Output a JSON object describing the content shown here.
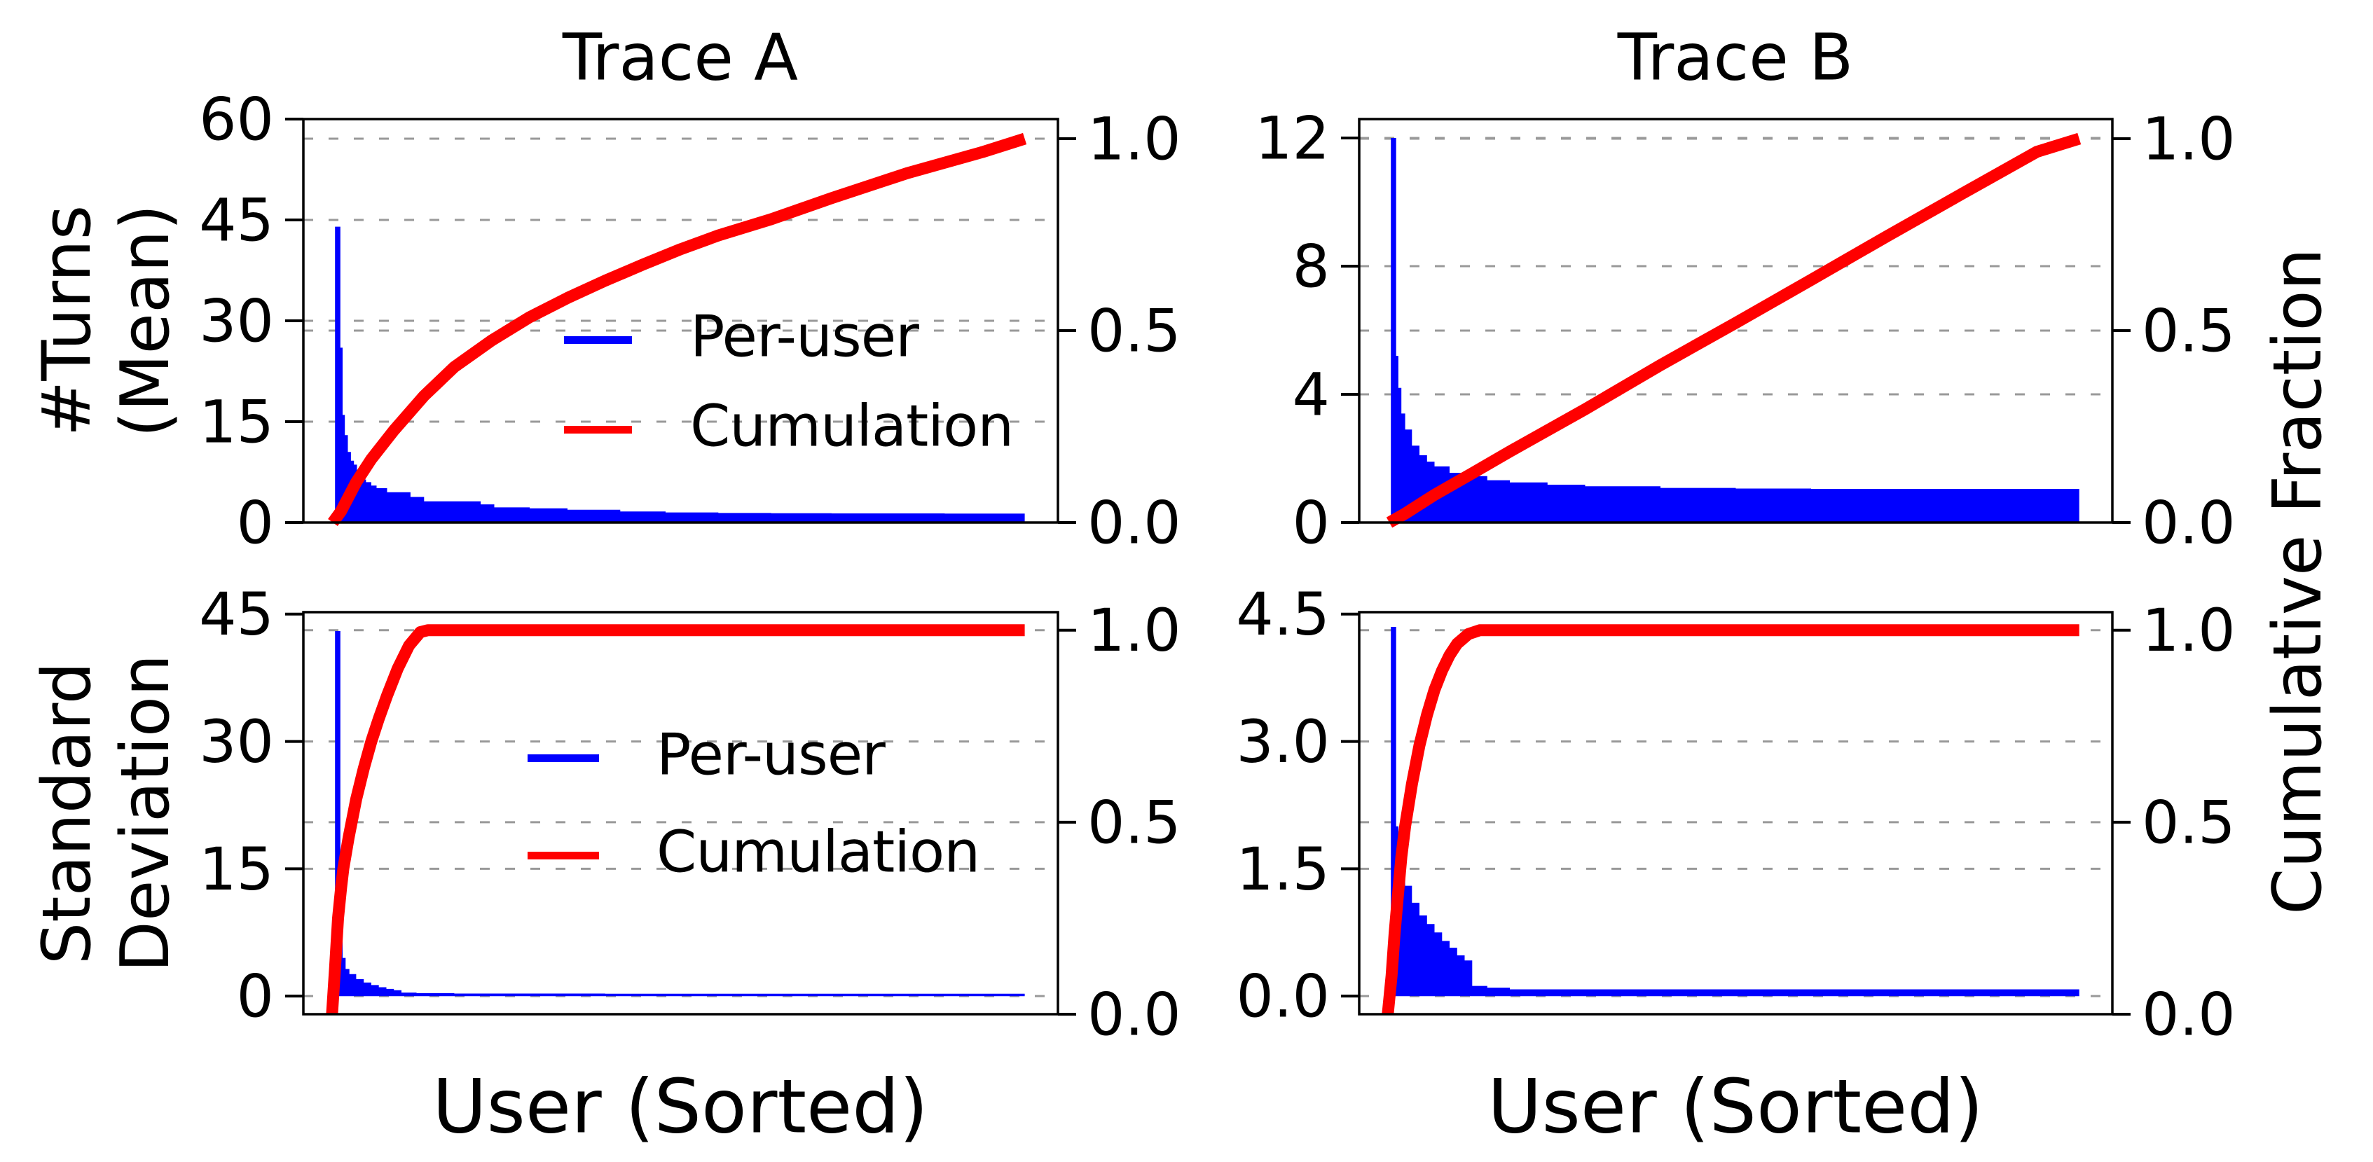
{
  "figure": {
    "background": "#ffffff",
    "title_a": "Trace A",
    "title_b": "Trace B",
    "xlabel": "User (Sorted)",
    "ylabel_top": {
      "line1": "#Turns",
      "line2": "(Mean)"
    },
    "ylabel_bottom": {
      "line1": "Standard",
      "line2": "Deviation"
    },
    "right_axis_label": "Cumulative Fraction",
    "legend": {
      "per_user": "Per-user",
      "cumulation": "Cumulation"
    },
    "colors": {
      "per_user_blue": "#0000ff",
      "cumulation_red": "#ff0000",
      "grid_gray": "#999999",
      "axis_black": "#000000"
    }
  },
  "chart_data": [
    {
      "id": "trace-a-mean",
      "type": "bar+line",
      "position": "top-left",
      "title": "Trace A",
      "x_axis": {
        "label": "User (Sorted)",
        "kind": "users sorted by value, normalized 0-1",
        "range": [
          0,
          1
        ]
      },
      "left_axis": {
        "label": "#Turns (Mean)",
        "min": 0,
        "max": 60,
        "ticks": [
          {
            "v": 0,
            "label": "0"
          },
          {
            "v": 15,
            "label": "15"
          },
          {
            "v": 30,
            "label": "30"
          },
          {
            "v": 45,
            "label": "45"
          },
          {
            "v": 60,
            "label": "60"
          }
        ]
      },
      "right_axis": {
        "label": "Cumulative Fraction",
        "min": 0,
        "max": 1.051,
        "ticks": [
          {
            "v": 0,
            "label": "0.0"
          },
          {
            "v": 0.5,
            "label": "0.5"
          },
          {
            "v": 1.0,
            "label": "1.0"
          }
        ]
      },
      "legend": true,
      "per_user": [
        [
          0.042,
          44
        ],
        [
          0.049,
          26
        ],
        [
          0.052,
          16
        ],
        [
          0.055,
          13
        ],
        [
          0.059,
          10.5
        ],
        [
          0.063,
          9.2
        ],
        [
          0.067,
          8.6
        ],
        [
          0.071,
          7.7
        ],
        [
          0.077,
          6.4
        ],
        [
          0.083,
          6.0
        ],
        [
          0.09,
          5.5
        ],
        [
          0.097,
          5.1
        ],
        [
          0.111,
          4.5
        ],
        [
          0.142,
          3.8
        ],
        [
          0.16,
          3.15
        ],
        [
          0.235,
          2.7
        ],
        [
          0.253,
          2.25
        ],
        [
          0.3,
          2.1
        ],
        [
          0.35,
          1.9
        ],
        [
          0.42,
          1.65
        ],
        [
          0.48,
          1.5
        ],
        [
          0.55,
          1.42
        ],
        [
          0.62,
          1.38
        ],
        [
          0.7,
          1.35
        ],
        [
          0.85,
          1.32
        ],
        [
          0.956,
          1.3
        ]
      ],
      "cumulation": [
        [
          0.039,
          0
        ],
        [
          0.05,
          0.03
        ],
        [
          0.07,
          0.105
        ],
        [
          0.09,
          0.165
        ],
        [
          0.12,
          0.24
        ],
        [
          0.16,
          0.33
        ],
        [
          0.2,
          0.405
        ],
        [
          0.25,
          0.475
        ],
        [
          0.3,
          0.535
        ],
        [
          0.35,
          0.585
        ],
        [
          0.4,
          0.63
        ],
        [
          0.45,
          0.672
        ],
        [
          0.5,
          0.712
        ],
        [
          0.55,
          0.748
        ],
        [
          0.62,
          0.79
        ],
        [
          0.7,
          0.845
        ],
        [
          0.8,
          0.91
        ],
        [
          0.9,
          0.965
        ],
        [
          0.956,
          1.0
        ]
      ]
    },
    {
      "id": "trace-b-mean",
      "type": "bar+line",
      "position": "top-right",
      "title": "Trace B",
      "x_axis": {
        "label": "User (Sorted)",
        "kind": "users sorted by value, normalized 0-1",
        "range": [
          0,
          1
        ]
      },
      "left_axis": {
        "label": "#Turns (Mean)",
        "min": 0,
        "max": 12.59,
        "ticks": [
          {
            "v": 0,
            "label": "0"
          },
          {
            "v": 4,
            "label": "4"
          },
          {
            "v": 8,
            "label": "8"
          },
          {
            "v": 12,
            "label": "12"
          }
        ]
      },
      "right_axis": {
        "label": "Cumulative Fraction",
        "min": 0,
        "max": 1.051,
        "ticks": [
          {
            "v": 0,
            "label": "0.0"
          },
          {
            "v": 0.5,
            "label": "0.5"
          },
          {
            "v": 1.0,
            "label": "1.0"
          }
        ]
      },
      "legend": false,
      "per_user": [
        [
          0.042,
          12
        ],
        [
          0.049,
          5.2
        ],
        [
          0.052,
          4.2
        ],
        [
          0.056,
          3.4
        ],
        [
          0.061,
          2.9
        ],
        [
          0.07,
          2.4
        ],
        [
          0.08,
          2.1
        ],
        [
          0.09,
          1.9
        ],
        [
          0.1,
          1.75
        ],
        [
          0.12,
          1.55
        ],
        [
          0.14,
          1.45
        ],
        [
          0.17,
          1.32
        ],
        [
          0.2,
          1.25
        ],
        [
          0.25,
          1.18
        ],
        [
          0.3,
          1.13
        ],
        [
          0.4,
          1.08
        ],
        [
          0.5,
          1.06
        ],
        [
          0.6,
          1.05
        ],
        [
          0.956,
          1.05
        ]
      ],
      "cumulation": [
        [
          0.04,
          0
        ],
        [
          0.06,
          0.022
        ],
        [
          0.08,
          0.047
        ],
        [
          0.1,
          0.072
        ],
        [
          0.15,
          0.128
        ],
        [
          0.2,
          0.185
        ],
        [
          0.3,
          0.295
        ],
        [
          0.4,
          0.41
        ],
        [
          0.5,
          0.52
        ],
        [
          0.6,
          0.632
        ],
        [
          0.7,
          0.745
        ],
        [
          0.8,
          0.856
        ],
        [
          0.9,
          0.966
        ],
        [
          0.956,
          1.0
        ]
      ]
    },
    {
      "id": "trace-a-std",
      "type": "bar+line",
      "position": "bottom-left",
      "title": "Trace A",
      "x_axis": {
        "label": "User (Sorted)",
        "kind": "users sorted by value, normalized 0-1",
        "range": [
          0,
          1
        ]
      },
      "left_axis": {
        "label": "Standard Deviation",
        "min": -2.13,
        "max": 45.23,
        "ticks": [
          {
            "v": 0,
            "label": "0"
          },
          {
            "v": 15,
            "label": "15"
          },
          {
            "v": 30,
            "label": "30"
          },
          {
            "v": 45,
            "label": "45"
          }
        ]
      },
      "right_axis": {
        "label": "Cumulative Fraction",
        "min": 0,
        "max": 1.047,
        "ticks": [
          {
            "v": 0,
            "label": "0.0"
          },
          {
            "v": 0.5,
            "label": "0.5"
          },
          {
            "v": 1.0,
            "label": "1.0"
          }
        ]
      },
      "legend": true,
      "per_user": [
        [
          0.042,
          43
        ],
        [
          0.049,
          8
        ],
        [
          0.052,
          4.5
        ],
        [
          0.056,
          3.2
        ],
        [
          0.061,
          2.6
        ],
        [
          0.07,
          2.0
        ],
        [
          0.08,
          1.6
        ],
        [
          0.09,
          1.3
        ],
        [
          0.1,
          1.05
        ],
        [
          0.11,
          0.85
        ],
        [
          0.12,
          0.7
        ],
        [
          0.13,
          0.42
        ],
        [
          0.15,
          0.35
        ],
        [
          0.2,
          0.3
        ],
        [
          0.4,
          0.28
        ],
        [
          0.956,
          0.25
        ]
      ],
      "cumulation": [
        [
          0.038,
          0
        ],
        [
          0.042,
          0.12
        ],
        [
          0.046,
          0.25
        ],
        [
          0.05,
          0.33
        ],
        [
          0.053,
          0.38
        ],
        [
          0.06,
          0.46
        ],
        [
          0.07,
          0.56
        ],
        [
          0.08,
          0.64
        ],
        [
          0.09,
          0.71
        ],
        [
          0.1,
          0.77
        ],
        [
          0.111,
          0.83
        ],
        [
          0.125,
          0.9
        ],
        [
          0.14,
          0.96
        ],
        [
          0.155,
          0.995
        ],
        [
          0.165,
          1.0
        ],
        [
          0.956,
          1.0
        ]
      ]
    },
    {
      "id": "trace-b-std",
      "type": "bar+line",
      "position": "bottom-right",
      "title": "Trace B",
      "x_axis": {
        "label": "User (Sorted)",
        "kind": "users sorted by value, normalized 0-1",
        "range": [
          0,
          1
        ]
      },
      "left_axis": {
        "label": "Standard Deviation",
        "min": -0.213,
        "max": 4.523,
        "ticks": [
          {
            "v": 0,
            "label": "0.0"
          },
          {
            "v": 1.5,
            "label": "1.5"
          },
          {
            "v": 3.0,
            "label": "3.0"
          },
          {
            "v": 4.5,
            "label": "4.5"
          }
        ]
      },
      "right_axis": {
        "label": "Cumulative Fraction",
        "min": 0,
        "max": 1.047,
        "ticks": [
          {
            "v": 0,
            "label": "0.0"
          },
          {
            "v": 0.5,
            "label": "0.5"
          },
          {
            "v": 1.0,
            "label": "1.0"
          }
        ]
      },
      "legend": false,
      "per_user": [
        [
          0.042,
          4.35
        ],
        [
          0.049,
          2.0
        ],
        [
          0.052,
          1.7
        ],
        [
          0.056,
          1.45
        ],
        [
          0.061,
          1.3
        ],
        [
          0.07,
          1.1
        ],
        [
          0.08,
          0.95
        ],
        [
          0.09,
          0.85
        ],
        [
          0.1,
          0.75
        ],
        [
          0.11,
          0.65
        ],
        [
          0.12,
          0.57
        ],
        [
          0.13,
          0.48
        ],
        [
          0.14,
          0.42
        ],
        [
          0.15,
          0.12
        ],
        [
          0.17,
          0.1
        ],
        [
          0.2,
          0.08
        ],
        [
          0.956,
          0.06
        ]
      ],
      "cumulation": [
        [
          0.038,
          0
        ],
        [
          0.043,
          0.1
        ],
        [
          0.047,
          0.21
        ],
        [
          0.051,
          0.3
        ],
        [
          0.056,
          0.41
        ],
        [
          0.061,
          0.49
        ],
        [
          0.07,
          0.6
        ],
        [
          0.08,
          0.7
        ],
        [
          0.09,
          0.78
        ],
        [
          0.1,
          0.845
        ],
        [
          0.11,
          0.895
        ],
        [
          0.12,
          0.935
        ],
        [
          0.13,
          0.965
        ],
        [
          0.145,
          0.99
        ],
        [
          0.16,
          1.0
        ],
        [
          0.956,
          1.0
        ]
      ]
    }
  ]
}
